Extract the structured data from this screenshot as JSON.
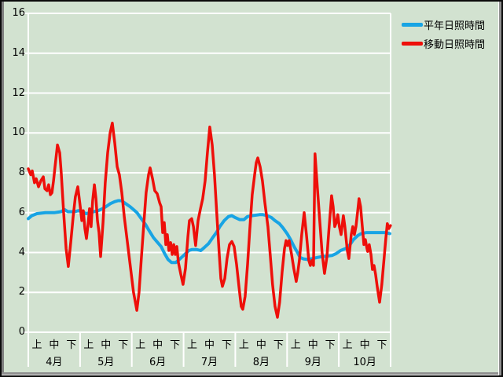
{
  "window": {
    "background_color": "#d2e2d0",
    "frame_color": "#8f8f8f",
    "grid_color": "#ffffff"
  },
  "legend": {
    "position": "top-right",
    "items": [
      {
        "label": "平年日照時間",
        "color": "#18a4e4"
      },
      {
        "label": "移動日照時間",
        "color": "#ee0f0a"
      }
    ]
  },
  "chart_data": {
    "type": "line",
    "title": "",
    "xlabel": "",
    "ylabel": "",
    "ylim": [
      0,
      16
    ],
    "y_ticks": [
      0,
      2,
      4,
      6,
      8,
      10,
      12,
      14,
      16
    ],
    "grid": true,
    "grid_color": "#ffffff",
    "legend_position": "top-right",
    "x_axis": {
      "months": [
        "4月",
        "5月",
        "6月",
        "7月",
        "8月",
        "9月",
        "10月"
      ],
      "periods": [
        "上",
        "中",
        "下"
      ],
      "x_unit": "decade-index 0-21 (7 months x 3 periods)"
    },
    "series": [
      {
        "name": "平年日照時間",
        "color": "#18a4e4",
        "stroke_width": 4,
        "points": [
          [
            0,
            5.7
          ],
          [
            0.2,
            5.85
          ],
          [
            0.5,
            5.95
          ],
          [
            1.0,
            6.0
          ],
          [
            1.5,
            6.0
          ],
          [
            1.9,
            6.05
          ],
          [
            2.1,
            6.15
          ],
          [
            2.3,
            6.05
          ],
          [
            2.7,
            6.05
          ],
          [
            2.9,
            6.1
          ],
          [
            3.1,
            6.05
          ],
          [
            3.35,
            5.95
          ],
          [
            3.6,
            6.0
          ],
          [
            3.8,
            6.05
          ],
          [
            4.05,
            6.1
          ],
          [
            4.3,
            6.2
          ],
          [
            4.5,
            6.3
          ],
          [
            4.75,
            6.45
          ],
          [
            5.0,
            6.55
          ],
          [
            5.2,
            6.6
          ],
          [
            5.4,
            6.6
          ],
          [
            5.65,
            6.45
          ],
          [
            5.9,
            6.3
          ],
          [
            6.1,
            6.15
          ],
          [
            6.3,
            6.0
          ],
          [
            6.55,
            5.7
          ],
          [
            6.8,
            5.4
          ],
          [
            7.0,
            5.1
          ],
          [
            7.25,
            4.75
          ],
          [
            7.5,
            4.5
          ],
          [
            7.7,
            4.3
          ],
          [
            7.9,
            3.95
          ],
          [
            8.1,
            3.65
          ],
          [
            8.3,
            3.5
          ],
          [
            8.55,
            3.5
          ],
          [
            8.75,
            3.65
          ],
          [
            9.0,
            3.85
          ],
          [
            9.3,
            4.1
          ],
          [
            9.5,
            4.15
          ],
          [
            9.75,
            4.15
          ],
          [
            10.0,
            4.1
          ],
          [
            10.2,
            4.25
          ],
          [
            10.45,
            4.45
          ],
          [
            10.65,
            4.7
          ],
          [
            10.9,
            5.0
          ],
          [
            11.1,
            5.3
          ],
          [
            11.35,
            5.6
          ],
          [
            11.6,
            5.8
          ],
          [
            11.8,
            5.85
          ],
          [
            12.0,
            5.75
          ],
          [
            12.25,
            5.65
          ],
          [
            12.5,
            5.65
          ],
          [
            12.7,
            5.8
          ],
          [
            12.95,
            5.85
          ],
          [
            13.4,
            5.9
          ],
          [
            13.6,
            5.9
          ],
          [
            13.85,
            5.85
          ],
          [
            14.1,
            5.75
          ],
          [
            14.3,
            5.6
          ],
          [
            14.55,
            5.45
          ],
          [
            14.75,
            5.25
          ],
          [
            15.0,
            4.95
          ],
          [
            15.2,
            4.65
          ],
          [
            15.4,
            4.3
          ],
          [
            15.6,
            4.0
          ],
          [
            15.75,
            3.75
          ],
          [
            15.95,
            3.68
          ],
          [
            16.2,
            3.65
          ],
          [
            16.5,
            3.7
          ],
          [
            16.75,
            3.75
          ],
          [
            17.05,
            3.8
          ],
          [
            17.3,
            3.82
          ],
          [
            17.6,
            3.85
          ],
          [
            17.85,
            3.95
          ],
          [
            18.1,
            4.1
          ],
          [
            18.4,
            4.2
          ],
          [
            18.65,
            4.4
          ],
          [
            18.85,
            4.65
          ],
          [
            19.1,
            4.85
          ],
          [
            19.3,
            4.95
          ],
          [
            19.6,
            5.0
          ],
          [
            19.85,
            5.0
          ],
          [
            20.4,
            5.0
          ],
          [
            20.7,
            5.0
          ],
          [
            20.95,
            4.95
          ]
        ]
      },
      {
        "name": "移動日照時間",
        "color": "#ee0f0a",
        "stroke_width": 3.5,
        "points": [
          [
            0,
            8.2
          ],
          [
            0.14,
            7.9
          ],
          [
            0.23,
            8.1
          ],
          [
            0.36,
            7.5
          ],
          [
            0.46,
            7.7
          ],
          [
            0.59,
            7.3
          ],
          [
            0.73,
            7.6
          ],
          [
            0.87,
            7.8
          ],
          [
            0.96,
            7.2
          ],
          [
            1.09,
            7.1
          ],
          [
            1.18,
            7.4
          ],
          [
            1.28,
            6.9
          ],
          [
            1.37,
            7.0
          ],
          [
            1.46,
            7.6
          ],
          [
            1.55,
            8.3
          ],
          [
            1.69,
            9.4
          ],
          [
            1.82,
            9.0
          ],
          [
            1.91,
            8.0
          ],
          [
            2.05,
            6.0
          ],
          [
            2.19,
            4.2
          ],
          [
            2.32,
            3.3
          ],
          [
            2.46,
            4.5
          ],
          [
            2.6,
            5.8
          ],
          [
            2.73,
            6.8
          ],
          [
            2.87,
            7.3
          ],
          [
            3.01,
            6.3
          ],
          [
            3.1,
            5.6
          ],
          [
            3.19,
            6.1
          ],
          [
            3.28,
            5.2
          ],
          [
            3.37,
            4.7
          ],
          [
            3.46,
            5.4
          ],
          [
            3.55,
            6.2
          ],
          [
            3.64,
            5.3
          ],
          [
            3.73,
            6.6
          ],
          [
            3.83,
            7.4
          ],
          [
            3.92,
            6.7
          ],
          [
            4.01,
            5.6
          ],
          [
            4.1,
            5.0
          ],
          [
            4.19,
            3.8
          ],
          [
            4.33,
            5.5
          ],
          [
            4.46,
            7.5
          ],
          [
            4.6,
            9.0
          ],
          [
            4.74,
            10.0
          ],
          [
            4.87,
            10.5
          ],
          [
            5.01,
            9.5
          ],
          [
            5.15,
            8.3
          ],
          [
            5.28,
            7.9
          ],
          [
            5.42,
            7.0
          ],
          [
            5.56,
            5.8
          ],
          [
            5.69,
            4.9
          ],
          [
            5.83,
            3.9
          ],
          [
            5.97,
            2.9
          ],
          [
            6.1,
            2.0
          ],
          [
            6.29,
            1.1
          ],
          [
            6.42,
            2.0
          ],
          [
            6.56,
            3.8
          ],
          [
            6.7,
            5.5
          ],
          [
            6.83,
            7.0
          ],
          [
            6.97,
            7.9
          ],
          [
            7.06,
            8.25
          ],
          [
            7.2,
            7.7
          ],
          [
            7.33,
            7.1
          ],
          [
            7.47,
            6.95
          ],
          [
            7.61,
            6.5
          ],
          [
            7.7,
            6.3
          ],
          [
            7.79,
            5.0
          ],
          [
            7.88,
            5.5
          ],
          [
            7.97,
            4.4
          ],
          [
            8.06,
            4.9
          ],
          [
            8.15,
            4.1
          ],
          [
            8.25,
            4.5
          ],
          [
            8.34,
            3.9
          ],
          [
            8.43,
            4.4
          ],
          [
            8.52,
            3.9
          ],
          [
            8.61,
            4.3
          ],
          [
            8.7,
            3.5
          ],
          [
            8.84,
            2.9
          ],
          [
            8.97,
            2.4
          ],
          [
            9.11,
            3.2
          ],
          [
            9.25,
            4.8
          ],
          [
            9.34,
            5.6
          ],
          [
            9.47,
            5.7
          ],
          [
            9.57,
            5.3
          ],
          [
            9.7,
            4.35
          ],
          [
            9.84,
            5.6
          ],
          [
            9.98,
            6.2
          ],
          [
            10.11,
            6.7
          ],
          [
            10.25,
            7.6
          ],
          [
            10.38,
            9.0
          ],
          [
            10.52,
            10.3
          ],
          [
            10.66,
            9.4
          ],
          [
            10.79,
            7.9
          ],
          [
            10.93,
            5.9
          ],
          [
            11.07,
            3.9
          ],
          [
            11.16,
            2.7
          ],
          [
            11.25,
            2.3
          ],
          [
            11.39,
            2.7
          ],
          [
            11.52,
            3.7
          ],
          [
            11.66,
            4.4
          ],
          [
            11.8,
            4.55
          ],
          [
            11.93,
            4.3
          ],
          [
            12.07,
            3.4
          ],
          [
            12.21,
            2.3
          ],
          [
            12.34,
            1.3
          ],
          [
            12.43,
            1.15
          ],
          [
            12.57,
            1.8
          ],
          [
            12.71,
            3.4
          ],
          [
            12.84,
            5.2
          ],
          [
            12.98,
            6.9
          ],
          [
            13.12,
            7.9
          ],
          [
            13.21,
            8.5
          ],
          [
            13.3,
            8.75
          ],
          [
            13.44,
            8.3
          ],
          [
            13.57,
            7.6
          ],
          [
            13.71,
            6.5
          ],
          [
            13.89,
            5.3
          ],
          [
            14.03,
            3.8
          ],
          [
            14.16,
            2.4
          ],
          [
            14.3,
            1.3
          ],
          [
            14.44,
            0.75
          ],
          [
            14.57,
            1.5
          ],
          [
            14.71,
            3.0
          ],
          [
            14.85,
            4.2
          ],
          [
            14.94,
            4.6
          ],
          [
            15.03,
            4.35
          ],
          [
            15.12,
            4.6
          ],
          [
            15.26,
            3.9
          ],
          [
            15.39,
            3.2
          ],
          [
            15.53,
            2.55
          ],
          [
            15.62,
            3.0
          ],
          [
            15.71,
            3.6
          ],
          [
            15.85,
            4.9
          ],
          [
            15.99,
            6.0
          ],
          [
            16.12,
            4.9
          ],
          [
            16.26,
            3.6
          ],
          [
            16.35,
            3.35
          ],
          [
            16.44,
            3.6
          ],
          [
            16.53,
            3.35
          ],
          [
            16.62,
            8.95
          ],
          [
            16.76,
            7.2
          ],
          [
            16.9,
            5.5
          ],
          [
            17.03,
            4.0
          ],
          [
            17.17,
            2.95
          ],
          [
            17.31,
            3.8
          ],
          [
            17.44,
            5.3
          ],
          [
            17.58,
            6.85
          ],
          [
            17.67,
            6.3
          ],
          [
            17.76,
            5.3
          ],
          [
            17.85,
            5.5
          ],
          [
            17.94,
            5.9
          ],
          [
            18.03,
            5.3
          ],
          [
            18.13,
            4.9
          ],
          [
            18.26,
            5.85
          ],
          [
            18.35,
            5.3
          ],
          [
            18.49,
            4.1
          ],
          [
            18.58,
            3.7
          ],
          [
            18.72,
            4.9
          ],
          [
            18.81,
            5.3
          ],
          [
            18.9,
            4.9
          ],
          [
            18.99,
            5.3
          ],
          [
            19.08,
            6.0
          ],
          [
            19.17,
            6.7
          ],
          [
            19.26,
            6.3
          ],
          [
            19.36,
            5.3
          ],
          [
            19.45,
            4.4
          ],
          [
            19.54,
            4.65
          ],
          [
            19.63,
            4.2
          ],
          [
            19.67,
            4.05
          ],
          [
            19.76,
            4.4
          ],
          [
            19.86,
            3.9
          ],
          [
            19.95,
            3.15
          ],
          [
            20.04,
            3.35
          ],
          [
            20.13,
            2.9
          ],
          [
            20.22,
            2.3
          ],
          [
            20.36,
            1.5
          ],
          [
            20.49,
            2.4
          ],
          [
            20.63,
            3.8
          ],
          [
            20.72,
            4.7
          ],
          [
            20.81,
            5.45
          ],
          [
            20.9,
            5.2
          ],
          [
            20.99,
            5.35
          ]
        ]
      }
    ]
  }
}
